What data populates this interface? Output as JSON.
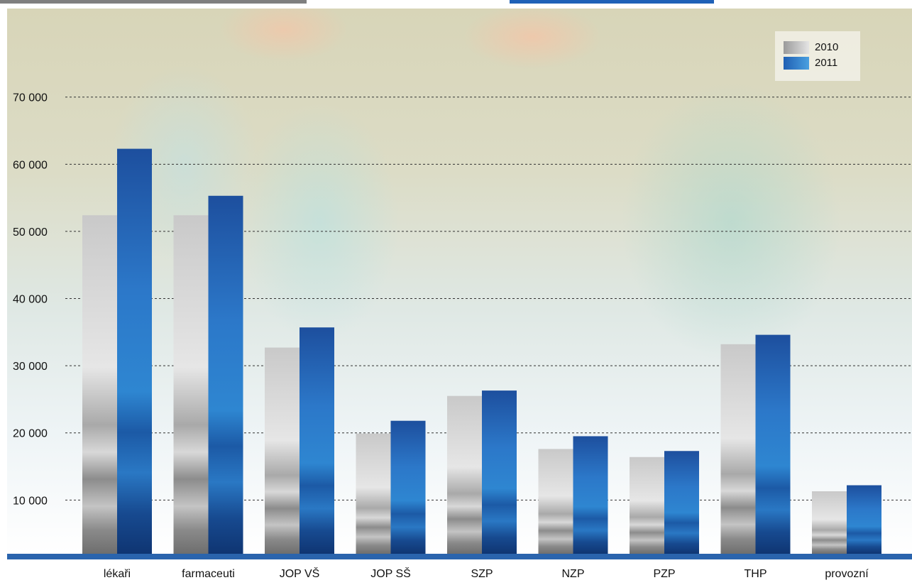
{
  "chart_data": {
    "type": "bar",
    "categories": [
      "lékaři",
      "farmaceuti",
      "JOP VŠ",
      "JOP SŠ",
      "SZP",
      "NZP",
      "PZP",
      "THP",
      "provozní"
    ],
    "series": [
      {
        "name": "2010",
        "values": [
          52400,
          52400,
          32700,
          19900,
          25500,
          17600,
          16400,
          33200,
          11300
        ]
      },
      {
        "name": "2011",
        "values": [
          62300,
          55300,
          35700,
          21800,
          26300,
          19500,
          17300,
          34600,
          12200
        ]
      }
    ],
    "y_ticks": [
      "10 000",
      "20 000",
      "30 000",
      "40 000",
      "50 000",
      "60 000",
      "70 000"
    ],
    "ylim": [
      2000,
      73000
    ],
    "title": "",
    "xlabel": "",
    "ylabel": "",
    "grid": "horizontal dashed",
    "legend_position": "top-right",
    "colors": {
      "2010": "#9a9a9a",
      "2011": "#1f5fb3",
      "axis": "#2a64ad"
    }
  }
}
